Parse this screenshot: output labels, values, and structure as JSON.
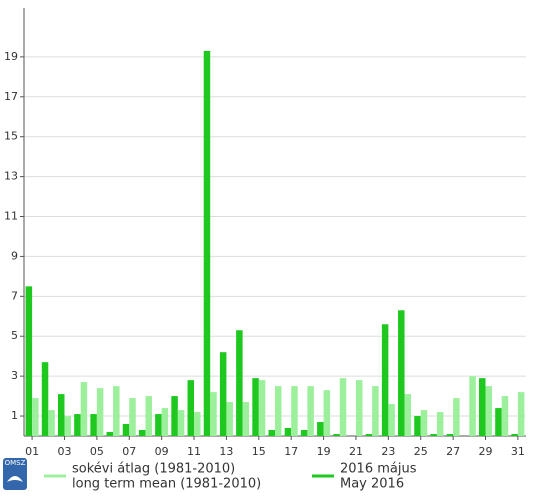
{
  "chart_data": {
    "type": "bar",
    "categories": [
      "01",
      null,
      "03",
      null,
      "05",
      null,
      "07",
      null,
      "09",
      null,
      "11",
      null,
      "13",
      null,
      "15",
      null,
      "17",
      null,
      "19",
      null,
      "21",
      null,
      "23",
      null,
      "25",
      null,
      "27",
      null,
      "29",
      null,
      "31"
    ],
    "series": [
      {
        "name": "2016 május",
        "name_en": "May 2016",
        "color": "#1ec81e",
        "values": [
          7.5,
          3.7,
          2.1,
          1.1,
          1.1,
          0.2,
          0.6,
          0.3,
          1.1,
          2.0,
          2.8,
          19.3,
          4.2,
          5.3,
          2.9,
          0.3,
          0.4,
          0.3,
          0.7,
          0.1,
          0,
          0.1,
          5.6,
          6.3,
          1.0,
          0.1,
          0.1,
          0,
          2.9,
          1.4,
          0.1
        ]
      },
      {
        "name": "sokévi átlag (1981-2010)",
        "name_en": "long term mean (1981-2010)",
        "color": "#9cf09c",
        "values": [
          1.9,
          1.3,
          1.0,
          2.7,
          2.4,
          2.5,
          1.9,
          2.0,
          1.4,
          1.3,
          1.2,
          2.2,
          1.7,
          1.7,
          2.8,
          2.5,
          2.5,
          2.5,
          2.3,
          2.9,
          2.8,
          2.5,
          1.6,
          2.1,
          1.3,
          1.2,
          1.9,
          3.0,
          2.5,
          2.0,
          2.2
        ]
      }
    ],
    "ylim": [
      0,
      21.45
    ],
    "yticks": [
      1,
      3,
      5,
      7,
      9,
      11,
      13,
      15,
      17,
      19
    ],
    "grid": true,
    "logo": "OMSZ"
  }
}
